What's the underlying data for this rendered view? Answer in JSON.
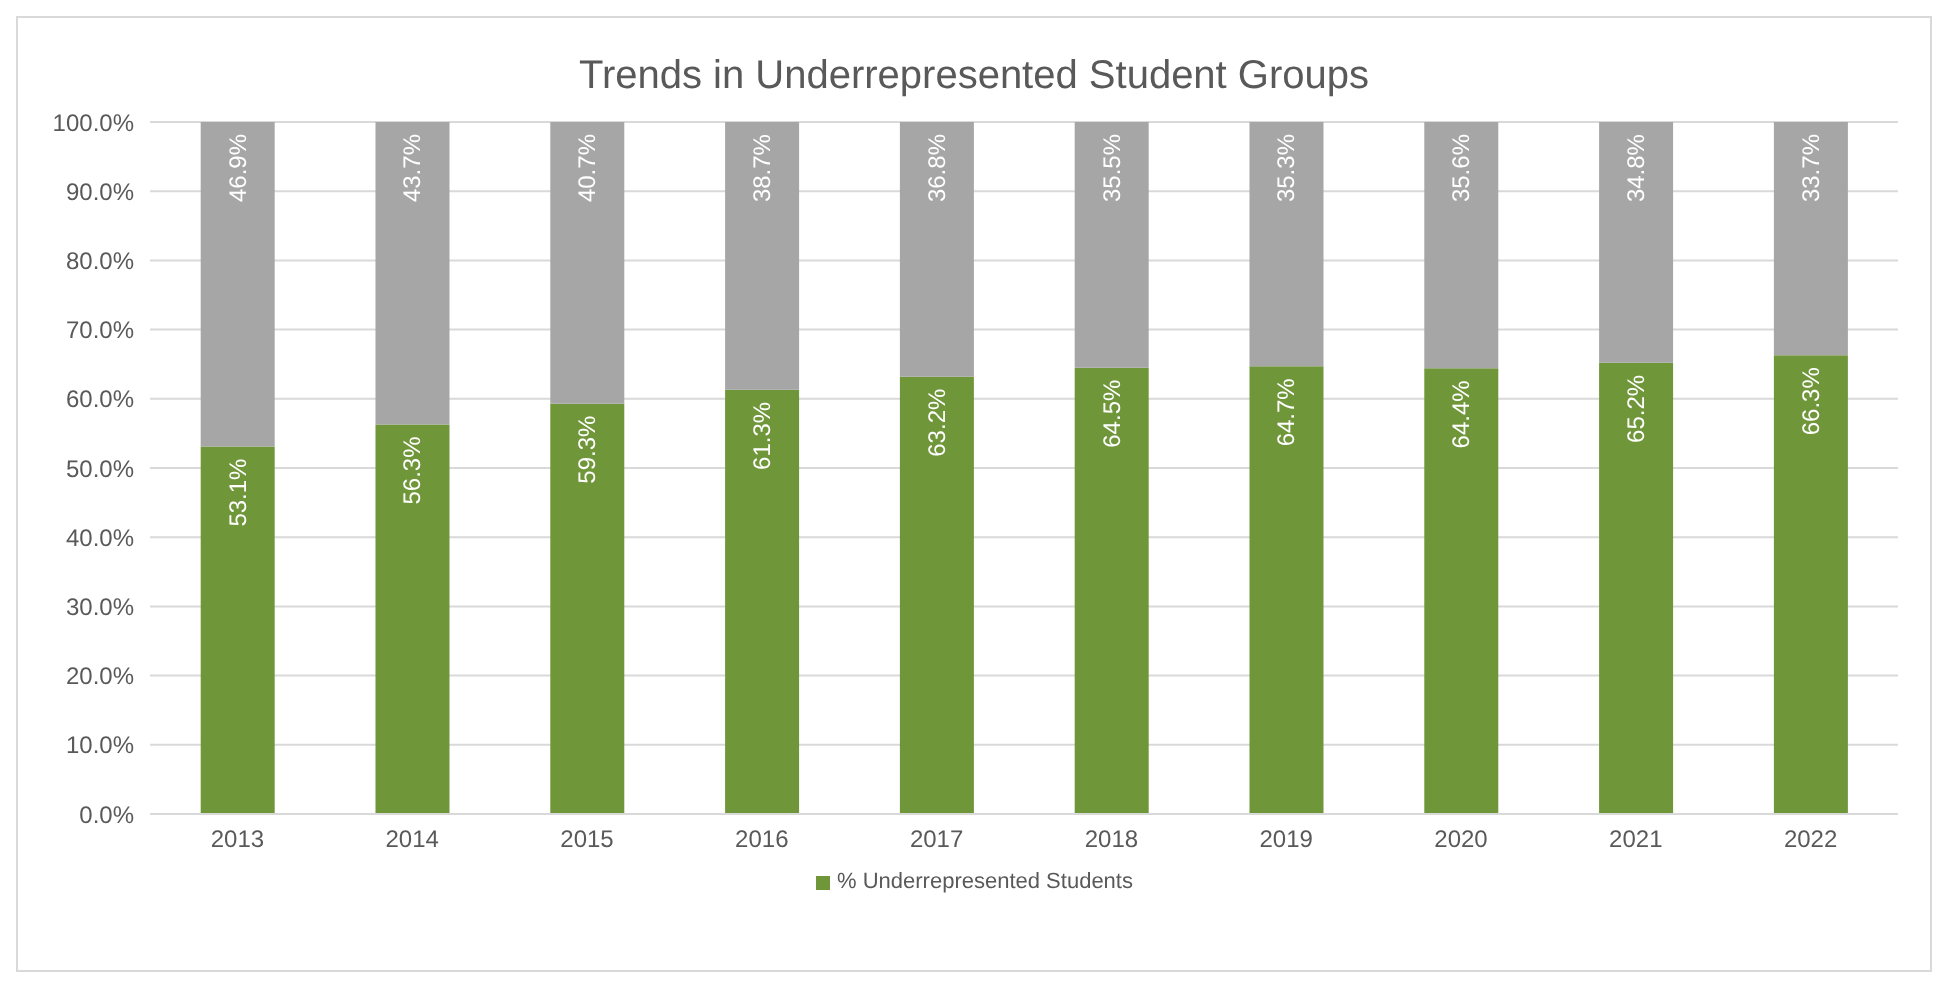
{
  "chart_data": {
    "type": "bar",
    "title": "Trends in Underrepresented Student Groups",
    "stacked": true,
    "categories": [
      "2013",
      "2014",
      "2015",
      "2016",
      "2017",
      "2018",
      "2019",
      "2020",
      "2021",
      "2022"
    ],
    "series": [
      {
        "name": "% Underrepresented Students",
        "color": "#70963a",
        "values": [
          53.1,
          56.3,
          59.3,
          61.3,
          63.2,
          64.5,
          64.7,
          64.4,
          65.2,
          66.3
        ],
        "value_labels": [
          "53.1%",
          "56.3%",
          "59.3%",
          "61.3%",
          "63.2%",
          "64.5%",
          "64.7%",
          "64.4%",
          "65.2%",
          "66.3%"
        ]
      },
      {
        "color": "#a6a6a6",
        "values": [
          46.9,
          43.7,
          40.7,
          38.7,
          36.8,
          35.5,
          35.3,
          35.6,
          34.8,
          33.7
        ],
        "value_labels": [
          "46.9%",
          "43.7%",
          "40.7%",
          "38.7%",
          "36.8%",
          "35.5%",
          "35.3%",
          "35.6%",
          "34.8%",
          "33.7%"
        ]
      }
    ],
    "ylim": [
      0,
      100
    ],
    "yticks": [
      {
        "value": 0,
        "label": "0.0%"
      },
      {
        "value": 10,
        "label": "10.0%"
      },
      {
        "value": 20,
        "label": "20.0%"
      },
      {
        "value": 30,
        "label": "30.0%"
      },
      {
        "value": 40,
        "label": "40.0%"
      },
      {
        "value": 50,
        "label": "50.0%"
      },
      {
        "value": 60,
        "label": "60.0%"
      },
      {
        "value": 70,
        "label": "70.0%"
      },
      {
        "value": 80,
        "label": "80.0%"
      },
      {
        "value": 90,
        "label": "90.0%"
      },
      {
        "value": 100,
        "label": "100.0%"
      }
    ],
    "grid": "y",
    "legend": "bottom"
  }
}
